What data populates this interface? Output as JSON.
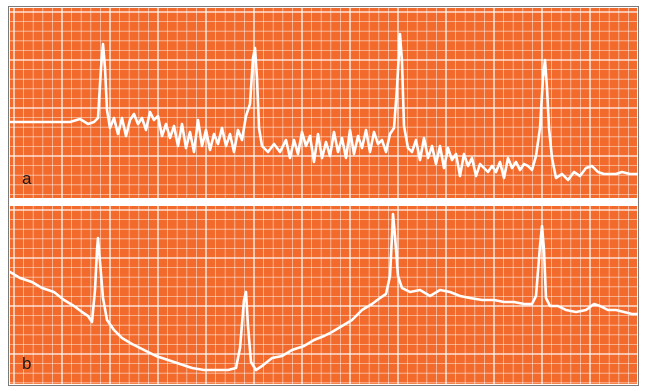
{
  "panels": [
    {
      "id": "a",
      "label": "a"
    },
    {
      "id": "b",
      "label": "b"
    }
  ],
  "colors": {
    "paper": "#f26a2c",
    "grid": "#ffffff",
    "trace": "#ffffff",
    "label": "#1a1a1a"
  }
}
